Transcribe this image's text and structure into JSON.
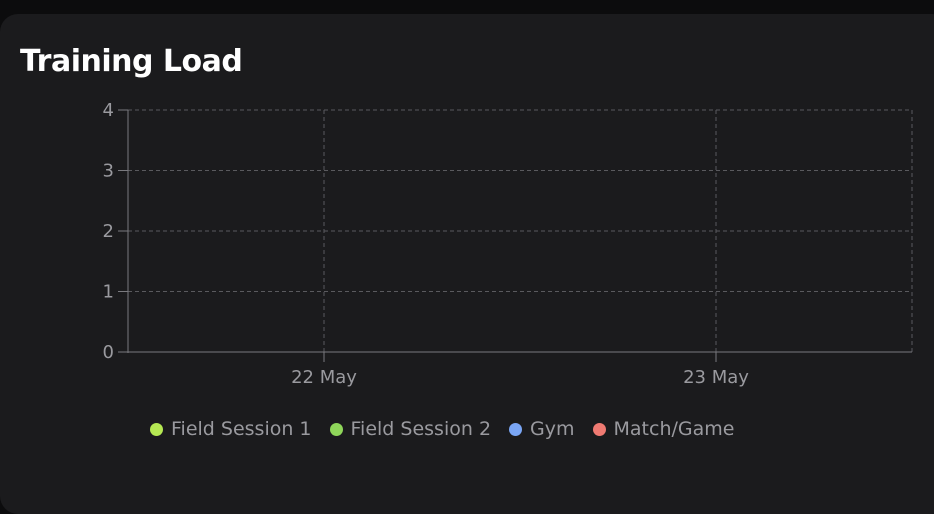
{
  "card": {
    "title": "Training Load"
  },
  "chart_data": {
    "type": "bar",
    "title": "Training Load",
    "x_ticks": [
      "22 May",
      "23 May"
    ],
    "y_ticks": [
      0,
      1,
      2,
      3,
      4
    ],
    "ylim": [
      0,
      4
    ],
    "grid": true,
    "legend_position": "bottom",
    "series": [
      {
        "name": "Field Session 1",
        "color": "#b5e853",
        "values": []
      },
      {
        "name": "Field Session 2",
        "color": "#8fd65a",
        "values": []
      },
      {
        "name": "Gym",
        "color": "#7aa6f5",
        "values": []
      },
      {
        "name": "Match/Game",
        "color": "#ef7a72",
        "values": []
      }
    ]
  }
}
